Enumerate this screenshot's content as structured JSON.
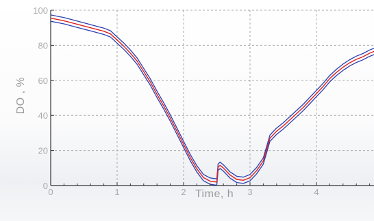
{
  "chart_data": {
    "type": "line",
    "xlabel": "Time, h",
    "ylabel": "DO , %",
    "xlim": [
      0,
      4.9
    ],
    "ylim": [
      0,
      100
    ],
    "x_ticks": [
      "0",
      "1",
      "2",
      "3",
      "4"
    ],
    "y_ticks": [
      "0",
      "20",
      "40",
      "60",
      "80",
      "100"
    ],
    "grid": true,
    "colors": {
      "center": "#e02020",
      "band": "#2a3fb0",
      "grid": "#a8a8a8",
      "axis": "#333333"
    },
    "series": [
      {
        "x": [
          0,
          0.2,
          0.4,
          0.6,
          0.8,
          0.9,
          1.0,
          1.1,
          1.2,
          1.3,
          1.4,
          1.5,
          1.6,
          1.7,
          1.8,
          1.9,
          2.0,
          2.1,
          2.2,
          2.3,
          2.4,
          2.5,
          2.52,
          2.55,
          2.6,
          2.7,
          2.8,
          2.9,
          3.0,
          3.1,
          3.2,
          3.3,
          3.4,
          3.5,
          3.6,
          3.7,
          3.8,
          3.9,
          4.0,
          4.1,
          4.2,
          4.3,
          4.4,
          4.5,
          4.6,
          4.7,
          4.8,
          4.9
        ],
        "values": [
          95.5,
          94,
          92,
          90,
          88,
          86.5,
          83,
          79.5,
          75.5,
          71,
          65,
          59,
          52,
          45.5,
          38.5,
          31,
          23.5,
          16,
          9.5,
          4.5,
          2.5,
          2,
          10.5,
          11.5,
          10,
          6,
          3.5,
          3,
          4.5,
          8.5,
          14,
          27,
          31,
          34,
          37.5,
          41,
          44.5,
          48.5,
          52.5,
          56.5,
          61,
          64.5,
          67.5,
          70,
          72,
          73.5,
          75.5,
          77
        ]
      }
    ]
  }
}
